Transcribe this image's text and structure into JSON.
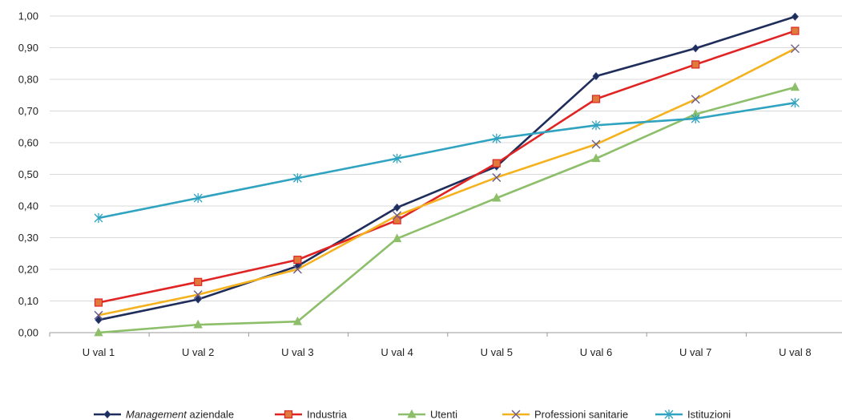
{
  "chart_data": {
    "type": "line",
    "categories": [
      "U val 1",
      "U val 2",
      "U val 3",
      "U val 4",
      "U val 5",
      "U val 6",
      "U val 7",
      "U val 8"
    ],
    "ylim": [
      0,
      1
    ],
    "yticks": [
      "0,00",
      "0,10",
      "0,20",
      "0,30",
      "0,40",
      "0,50",
      "0,60",
      "0,70",
      "0,80",
      "0,90",
      "1,00"
    ],
    "grid": true,
    "legend_position": "bottom",
    "series": [
      {
        "name_em": "Management",
        "name_rest": " aziendale",
        "color": "#1f2d5a",
        "marker": "diamond",
        "values": [
          0.04,
          0.105,
          0.21,
          0.395,
          0.525,
          0.81,
          0.898,
          0.998
        ]
      },
      {
        "name": "Industria",
        "color": "#e02424",
        "marker": "square",
        "values": [
          0.095,
          0.16,
          0.23,
          0.355,
          0.535,
          0.738,
          0.847,
          0.953
        ]
      },
      {
        "name": "Utenti",
        "color": "#8dbe6a",
        "marker": "triangle",
        "values": [
          0.0,
          0.025,
          0.035,
          0.297,
          0.425,
          0.55,
          0.69,
          0.775
        ]
      },
      {
        "name": "Professioni sanitarie",
        "color": "#f5b21f",
        "marker": "x",
        "values": [
          0.055,
          0.12,
          0.2,
          0.37,
          0.49,
          0.595,
          0.737,
          0.897
        ]
      },
      {
        "name": "Istituzioni",
        "color": "#2fa3c0",
        "marker": "asterisk",
        "values": [
          0.362,
          0.425,
          0.488,
          0.55,
          0.613,
          0.655,
          0.676,
          0.726
        ]
      }
    ]
  }
}
